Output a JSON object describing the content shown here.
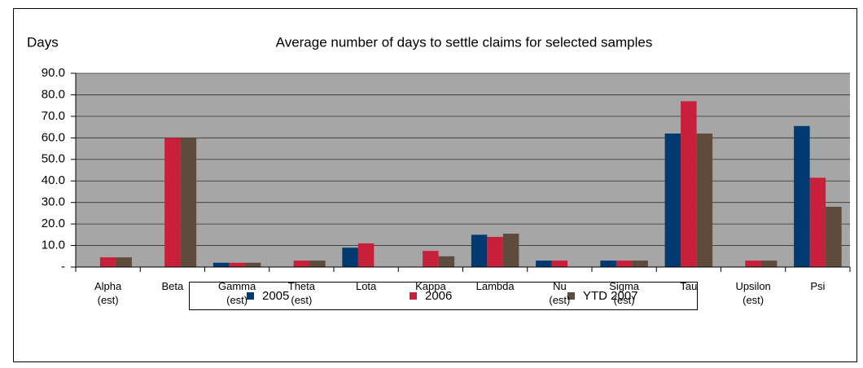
{
  "chart_data": {
    "type": "bar",
    "title": "Average number of days to settle claims for selected samples",
    "y_label": "Days",
    "categories": [
      "Alpha\n(est)",
      "Beta",
      "Gamma\n(est)",
      "Theta\n(est)",
      "Lota",
      "Kappa",
      "Lambda",
      "Nu\n(est)",
      "Sigma\n(est)",
      "Tau",
      "Upsilon\n(est)",
      "Psi"
    ],
    "series": [
      {
        "name": "2005",
        "color": "#003a70",
        "values": [
          null,
          null,
          2,
          null,
          9,
          null,
          15,
          3,
          3,
          62,
          null,
          65.5
        ]
      },
      {
        "name": "2006",
        "color": "#c8203a",
        "values": [
          4.5,
          60,
          2,
          3,
          11,
          7.5,
          14,
          3,
          3,
          77,
          3,
          41.5
        ]
      },
      {
        "name": "YTD 2007",
        "color": "#5e4b3c",
        "values": [
          4.5,
          60,
          2,
          3,
          null,
          5,
          15.5,
          null,
          3,
          62,
          3,
          28
        ]
      }
    ],
    "ylim": [
      0,
      90
    ],
    "yticks": [
      {
        "value": 0,
        "label": "-"
      },
      {
        "value": 10,
        "label": "10.0"
      },
      {
        "value": 20,
        "label": "20.0"
      },
      {
        "value": 30,
        "label": "30.0"
      },
      {
        "value": 40,
        "label": "40.0"
      },
      {
        "value": 50,
        "label": "50.0"
      },
      {
        "value": 60,
        "label": "60.0"
      },
      {
        "value": 70,
        "label": "70.0"
      },
      {
        "value": 80,
        "label": "80.0"
      },
      {
        "value": 90,
        "label": "90.0"
      }
    ],
    "grid": true,
    "legend": "bottom"
  }
}
